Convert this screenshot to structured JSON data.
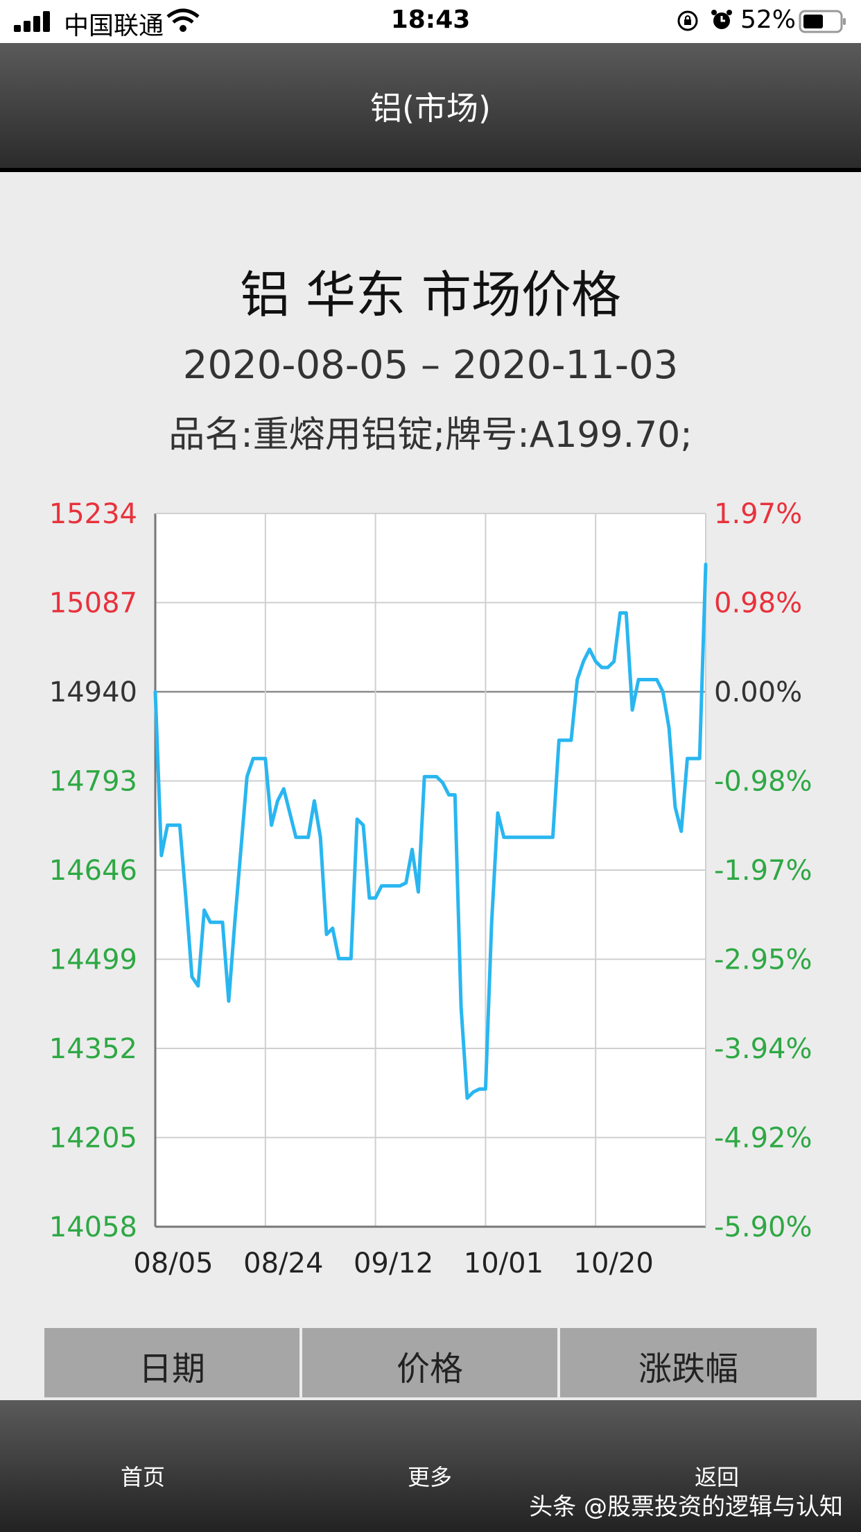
{
  "status_bar": {
    "carrier": "中国联通",
    "time": "18:43",
    "battery": "52%",
    "icons": [
      "signal-icon",
      "wifi-icon",
      "rotation-lock-icon",
      "alarm-icon",
      "battery-icon"
    ]
  },
  "nav": {
    "title": "铝(市场)"
  },
  "header": {
    "title": "铝 华东 市场价格",
    "date_range": "2020-08-05 – 2020-11-03",
    "product": "品名:重熔用铝锭;牌号:A199.70;"
  },
  "colors": {
    "line": "#29b6f0",
    "up": "#e8323c",
    "down": "#2ea844",
    "neutral": "#333333"
  },
  "chart_data": {
    "type": "line",
    "grid": true,
    "ylim": [
      14058,
      15234
    ],
    "y_ticks_left": [
      "15234",
      "15087",
      "14940",
      "14793",
      "14646",
      "14499",
      "14352",
      "14205",
      "14058"
    ],
    "y_ticks_right": [
      "1.97%",
      "0.98%",
      "0.00%",
      "-0.98%",
      "-1.97%",
      "-2.95%",
      "-3.94%",
      "-4.92%",
      "-5.90%"
    ],
    "x_ticks": [
      "08/05",
      "08/24",
      "09/12",
      "10/01",
      "10/20"
    ],
    "x_range_days": [
      0,
      90
    ],
    "series": [
      {
        "x": [
          0,
          1,
          2,
          3,
          4,
          5,
          6,
          7,
          8,
          9,
          10,
          11,
          12,
          13,
          14,
          15,
          16,
          17,
          18,
          19,
          20,
          21,
          22,
          23,
          24,
          25,
          26,
          27,
          28,
          29,
          30,
          31,
          32,
          33,
          34,
          35,
          36,
          37,
          38,
          39,
          40,
          41,
          42,
          43,
          44,
          45,
          46,
          47,
          48,
          49,
          50,
          51,
          52,
          53,
          54,
          55,
          56,
          57,
          58,
          59,
          60,
          61,
          62,
          63,
          64,
          65,
          66,
          67,
          68,
          69,
          70,
          71,
          72,
          73,
          74,
          75,
          76,
          77,
          78,
          79,
          80,
          81,
          82,
          83,
          84,
          85,
          86,
          87,
          88,
          89,
          90
        ],
        "values": [
          14940,
          14670,
          14720,
          14720,
          14720,
          14600,
          14470,
          14455,
          14580,
          14560,
          14560,
          14560,
          14430,
          14560,
          14680,
          14800,
          14830,
          14830,
          14830,
          14720,
          14760,
          14780,
          14740,
          14700,
          14700,
          14700,
          14760,
          14700,
          14540,
          14550,
          14500,
          14500,
          14500,
          14730,
          14720,
          14600,
          14600,
          14620,
          14620,
          14620,
          14620,
          14625,
          14680,
          14610,
          14800,
          14800,
          14800,
          14790,
          14770,
          14770,
          14420,
          14270,
          14280,
          14285,
          14285,
          14560,
          14740,
          14700,
          14700,
          14700,
          14700,
          14700,
          14700,
          14700,
          14700,
          14700,
          14860,
          14860,
          14860,
          14960,
          14990,
          15010,
          14990,
          14980,
          14980,
          14990,
          15070,
          15070,
          14910,
          14960,
          14960,
          14960,
          14960,
          14940,
          14880,
          14750,
          14710,
          14830,
          14830,
          14830,
          15150
        ]
      }
    ]
  },
  "table": {
    "headers": [
      "日期",
      "价格",
      "涨跌幅"
    ]
  },
  "tabbar": {
    "home": "首页",
    "more": "更多",
    "back": "返回"
  },
  "watermark": "头条 @股票投资的逻辑与认知"
}
